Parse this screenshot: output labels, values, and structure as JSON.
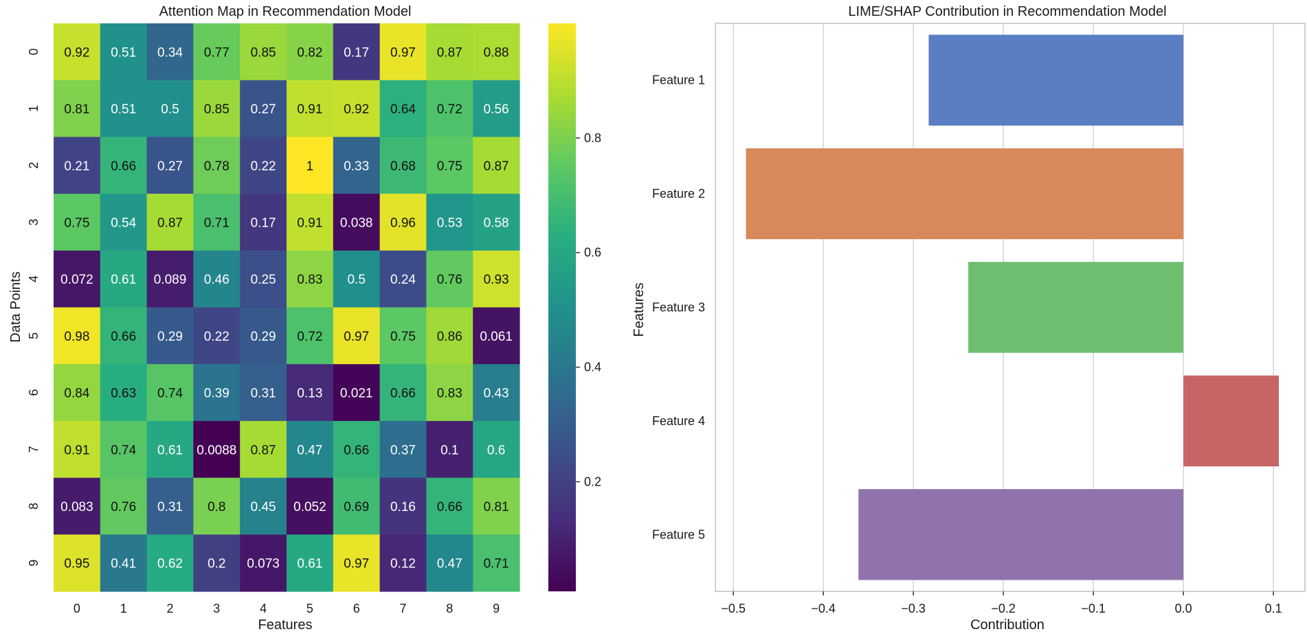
{
  "chart_data": [
    {
      "type": "heatmap",
      "title": "Attention Map in Recommendation Model",
      "xlabel": "Features",
      "ylabel": "Data Points",
      "x_ticks": [
        "0",
        "1",
        "2",
        "3",
        "4",
        "5",
        "6",
        "7",
        "8",
        "9"
      ],
      "y_ticks": [
        "0",
        "1",
        "2",
        "3",
        "4",
        "5",
        "6",
        "7",
        "8",
        "9"
      ],
      "colormap": "viridis",
      "colorbar_ticks": [
        "0.2",
        "0.4",
        "0.6",
        "0.8"
      ],
      "colorbar_tick_values": [
        0.2,
        0.4,
        0.6,
        0.8
      ],
      "vmin": 0.0088,
      "vmax": 1.0,
      "values": [
        [
          0.92,
          0.51,
          0.34,
          0.77,
          0.85,
          0.82,
          0.17,
          0.97,
          0.87,
          0.88
        ],
        [
          0.81,
          0.51,
          0.5,
          0.85,
          0.27,
          0.91,
          0.92,
          0.64,
          0.72,
          0.56
        ],
        [
          0.21,
          0.66,
          0.27,
          0.78,
          0.22,
          1,
          0.33,
          0.68,
          0.75,
          0.87
        ],
        [
          0.75,
          0.54,
          0.87,
          0.71,
          0.17,
          0.91,
          0.038,
          0.96,
          0.53,
          0.58
        ],
        [
          0.072,
          0.61,
          0.089,
          0.46,
          0.25,
          0.83,
          0.5,
          0.24,
          0.76,
          0.93
        ],
        [
          0.98,
          0.66,
          0.29,
          0.22,
          0.29,
          0.72,
          0.97,
          0.75,
          0.86,
          0.061
        ],
        [
          0.84,
          0.63,
          0.74,
          0.39,
          0.31,
          0.13,
          0.021,
          0.66,
          0.83,
          0.43
        ],
        [
          0.91,
          0.74,
          0.61,
          0.0088,
          0.87,
          0.47,
          0.66,
          0.37,
          0.1,
          0.6
        ],
        [
          0.083,
          0.76,
          0.31,
          0.8,
          0.45,
          0.052,
          0.69,
          0.16,
          0.66,
          0.81
        ],
        [
          0.95,
          0.41,
          0.62,
          0.2,
          0.073,
          0.61,
          0.97,
          0.12,
          0.47,
          0.71
        ]
      ]
    },
    {
      "type": "bar",
      "orientation": "horizontal",
      "title": "LIME/SHAP Contribution in Recommendation Model",
      "xlabel": "Contribution",
      "ylabel": "Features",
      "categories": [
        "Feature 1",
        "Feature 2",
        "Feature 3",
        "Feature 4",
        "Feature 5"
      ],
      "values": [
        -0.283,
        -0.486,
        -0.239,
        0.106,
        -0.361
      ],
      "colors": [
        "#5a7ec1",
        "#d8895c",
        "#6dbf6f",
        "#c76466",
        "#9073ad"
      ],
      "xlim": [
        -0.52,
        0.135
      ],
      "x_ticks": [
        -0.5,
        -0.4,
        -0.3,
        -0.2,
        -0.1,
        0.0,
        0.1
      ],
      "x_tick_labels": [
        "−0.5",
        "−0.4",
        "−0.3",
        "−0.2",
        "−0.1",
        "0.0",
        "0.1"
      ],
      "grid": "vertical"
    }
  ]
}
